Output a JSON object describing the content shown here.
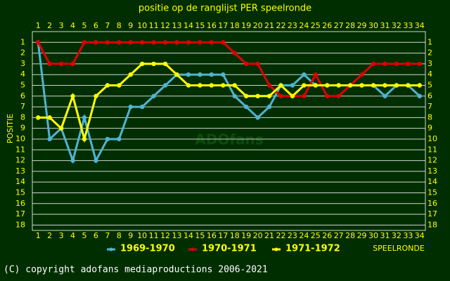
{
  "chart_data": {
    "type": "line",
    "title": "positie op de ranglijst PER speelronde",
    "y_label": "POSITIE",
    "x_label": "SPEELRONDE",
    "watermark": "ADOfans",
    "footer": "(C) copyright adofans mediaproductions 2006-2021",
    "x": [
      1,
      2,
      3,
      4,
      5,
      6,
      7,
      8,
      9,
      10,
      11,
      12,
      13,
      14,
      15,
      16,
      17,
      18,
      19,
      20,
      21,
      22,
      23,
      24,
      25,
      26,
      27,
      28,
      29,
      30,
      31,
      32,
      33,
      34
    ],
    "xlim": [
      0.5,
      34.5
    ],
    "xticks": [
      1,
      2,
      3,
      4,
      5,
      6,
      7,
      8,
      9,
      10,
      11,
      12,
      13,
      14,
      15,
      16,
      17,
      18,
      19,
      20,
      21,
      22,
      23,
      24,
      25,
      26,
      27,
      28,
      29,
      30,
      31,
      32,
      33,
      34
    ],
    "ylim": [
      18.5,
      0
    ],
    "yticks": [
      1,
      2,
      3,
      4,
      5,
      6,
      7,
      8,
      9,
      10,
      11,
      12,
      13,
      14,
      15,
      16,
      17,
      18
    ],
    "grid": true,
    "series": [
      {
        "name": "1969-1970",
        "color": "#4fb4d4",
        "values": [
          1,
          10,
          9,
          12,
          8,
          12,
          10,
          10,
          7,
          7,
          6,
          5,
          4,
          4,
          4,
          4,
          4,
          6,
          7,
          8,
          7,
          5,
          5,
          4,
          5,
          5,
          5,
          5,
          5,
          5,
          6,
          5,
          5,
          6
        ]
      },
      {
        "name": "1970-1971",
        "color": "#e00000",
        "values": [
          1,
          3,
          3,
          3,
          1,
          1,
          1,
          1,
          1,
          1,
          1,
          1,
          1,
          1,
          1,
          1,
          1,
          2,
          3,
          3,
          5,
          6,
          6,
          6,
          4,
          6,
          6,
          5,
          4,
          3,
          3,
          3,
          3,
          3
        ]
      },
      {
        "name": "1971-1972",
        "color": "#ffff00",
        "values": [
          8,
          8,
          9,
          6,
          10,
          6,
          5,
          5,
          4,
          3,
          3,
          3,
          4,
          5,
          5,
          5,
          5,
          5,
          6,
          6,
          6,
          5,
          6,
          5,
          5,
          5,
          5,
          5,
          5,
          5,
          5,
          5,
          5,
          5
        ]
      }
    ]
  }
}
